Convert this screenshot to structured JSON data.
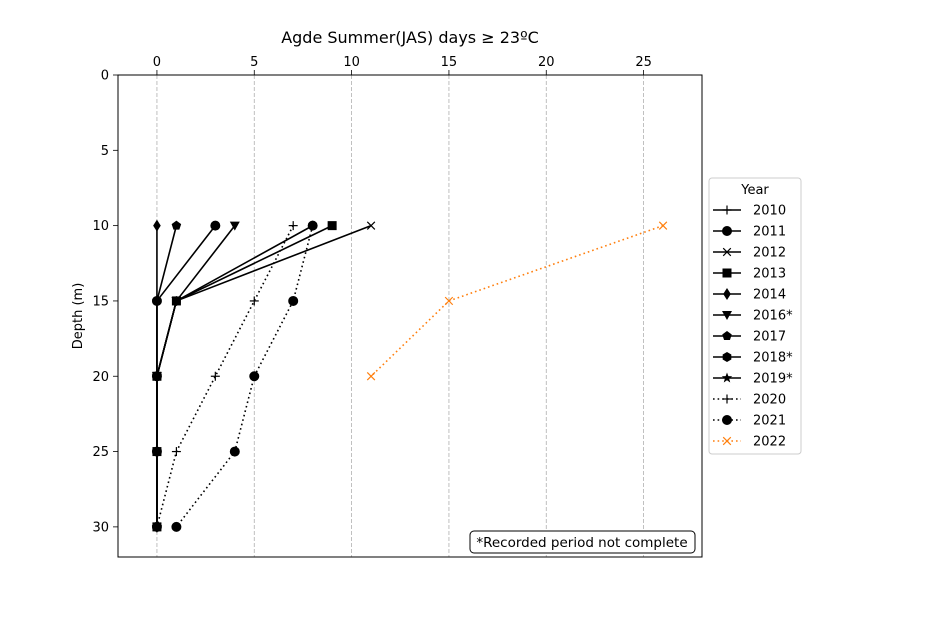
{
  "chart_data": {
    "type": "line",
    "title": "Agde Summer(JAS) days ≥ 23ºC",
    "xlabel": "",
    "ylabel": "Depth (m)",
    "xlim": [
      -2,
      28
    ],
    "ylim": [
      32,
      0
    ],
    "x_ticks": [
      0,
      5,
      10,
      15,
      20,
      25
    ],
    "y_ticks": [
      0,
      5,
      10,
      15,
      20,
      25,
      30
    ],
    "x_axis_position": "top",
    "y_inverted": true,
    "grid": "vertical dashed",
    "legend": {
      "title": "Year",
      "placement": "outside right"
    },
    "note": "*Recorded period not complete",
    "series": [
      {
        "name": "2010",
        "marker": "plus",
        "style": "solid",
        "color": "#000000",
        "points": [
          [
            0,
            30
          ]
        ]
      },
      {
        "name": "2011",
        "marker": "circle",
        "style": "solid",
        "color": "#000000",
        "points": [
          [
            3,
            10
          ],
          [
            0,
            15
          ],
          [
            0,
            20
          ],
          [
            0,
            25
          ],
          [
            0,
            30
          ]
        ]
      },
      {
        "name": "2012",
        "marker": "x",
        "style": "solid",
        "color": "#000000",
        "points": [
          [
            11,
            10
          ],
          [
            1,
            15
          ],
          [
            0,
            20
          ],
          [
            0,
            25
          ],
          [
            0,
            30
          ]
        ]
      },
      {
        "name": "2013",
        "marker": "square",
        "style": "solid",
        "color": "#000000",
        "points": [
          [
            9,
            10
          ],
          [
            1,
            15
          ],
          [
            0,
            20
          ],
          [
            0,
            25
          ],
          [
            0,
            30
          ]
        ]
      },
      {
        "name": "2014",
        "marker": "diamond",
        "style": "solid",
        "color": "#000000",
        "points": [
          [
            0,
            10
          ],
          [
            0,
            15
          ],
          [
            0,
            20
          ],
          [
            0,
            25
          ],
          [
            0,
            30
          ]
        ]
      },
      {
        "name": "2016*",
        "marker": "triangle-down",
        "style": "solid",
        "color": "#000000",
        "points": [
          [
            4,
            10
          ],
          [
            1,
            15
          ],
          [
            0,
            20
          ]
        ]
      },
      {
        "name": "2017",
        "marker": "pentagon",
        "style": "solid",
        "color": "#000000",
        "points": [
          [
            1,
            10
          ],
          [
            0,
            15
          ],
          [
            0,
            20
          ],
          [
            0,
            25
          ],
          [
            0,
            30
          ]
        ]
      },
      {
        "name": "2018*",
        "marker": "hexagon",
        "style": "solid",
        "color": "#000000",
        "points": [
          [
            8,
            10
          ],
          [
            1,
            15
          ],
          [
            0,
            20
          ]
        ]
      },
      {
        "name": "2019*",
        "marker": "star",
        "style": "solid",
        "color": "#000000",
        "points": [
          [
            0,
            20
          ],
          [
            0,
            25
          ],
          [
            0,
            30
          ]
        ]
      },
      {
        "name": "2020",
        "marker": "plus",
        "style": "dotted",
        "color": "#000000",
        "points": [
          [
            7,
            10
          ],
          [
            5,
            15
          ],
          [
            3,
            20
          ],
          [
            1,
            25
          ],
          [
            0,
            30
          ]
        ]
      },
      {
        "name": "2021",
        "marker": "circle",
        "style": "dotted",
        "color": "#000000",
        "points": [
          [
            8,
            10
          ],
          [
            7,
            15
          ],
          [
            5,
            20
          ],
          [
            4,
            25
          ],
          [
            1,
            30
          ]
        ]
      },
      {
        "name": "2022",
        "marker": "x",
        "style": "dotted",
        "color": "#ff7f0e",
        "points": [
          [
            26,
            10
          ],
          [
            15,
            15
          ],
          [
            11,
            20
          ]
        ]
      }
    ]
  }
}
